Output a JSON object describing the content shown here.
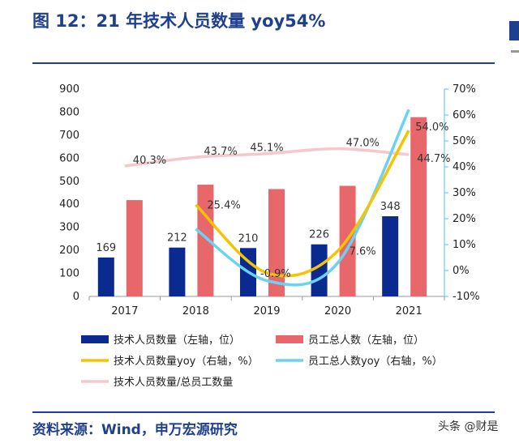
{
  "title": "图 12：21 年技术人员数量 yoy54%",
  "source": "资料来源：Wind，申万宏源研究",
  "watermark": "头条 @财是",
  "colors": {
    "title": "#1f3f8f",
    "tech_bar": "#0a2a8f",
    "staff_bar": "#e8676a",
    "tech_yoy": "#f5c400",
    "staff_yoy": "#6ad3f5",
    "ratio": "#f6c7cc",
    "right_axis": "#4cc3e8"
  },
  "chart_data": {
    "type": "bar",
    "categories": [
      "2017",
      "2018",
      "2019",
      "2020",
      "2021"
    ],
    "left_axis": {
      "ylim": [
        0,
        900
      ],
      "ticks": [
        "0",
        "100",
        "200",
        "300",
        "400",
        "500",
        "600",
        "700",
        "800",
        "900"
      ]
    },
    "right_axis": {
      "ylim": [
        -10,
        70
      ],
      "ticks": [
        "-10%",
        "0%",
        "10%",
        "20%",
        "30%",
        "40%",
        "50%",
        "60%",
        "70%"
      ]
    },
    "series": [
      {
        "name": "技术人员数量（左轴，位）",
        "kind": "bar",
        "axis": "left",
        "values": [
          169,
          212,
          210,
          226,
          348
        ],
        "labels": [
          "169",
          "212",
          "210",
          "226",
          "348"
        ]
      },
      {
        "name": "员工总人数（左轴，位）",
        "kind": "bar",
        "axis": "left",
        "values": [
          418,
          485,
          466,
          480,
          778
        ]
      },
      {
        "name": "技术人员数量yoy（右轴，%）",
        "kind": "line",
        "axis": "right",
        "values": [
          null,
          25.4,
          -0.9,
          7.6,
          54.0
        ],
        "labels": [
          "",
          "25.4%",
          "-0.9%",
          "7.6%",
          "54.0%"
        ]
      },
      {
        "name": "员工总人数yoy（右轴，%）",
        "kind": "line",
        "axis": "right",
        "values": [
          null,
          16.0,
          -3.9,
          3.0,
          62.1
        ]
      },
      {
        "name": "技术人员数量/总员工数量",
        "kind": "line",
        "axis": "right",
        "values": [
          40.3,
          43.7,
          45.1,
          47.0,
          44.7
        ],
        "labels": [
          "40.3%",
          "43.7%",
          "45.1%",
          "47.0%",
          "44.7%"
        ]
      }
    ],
    "legend_position": "bottom",
    "grid": false
  }
}
